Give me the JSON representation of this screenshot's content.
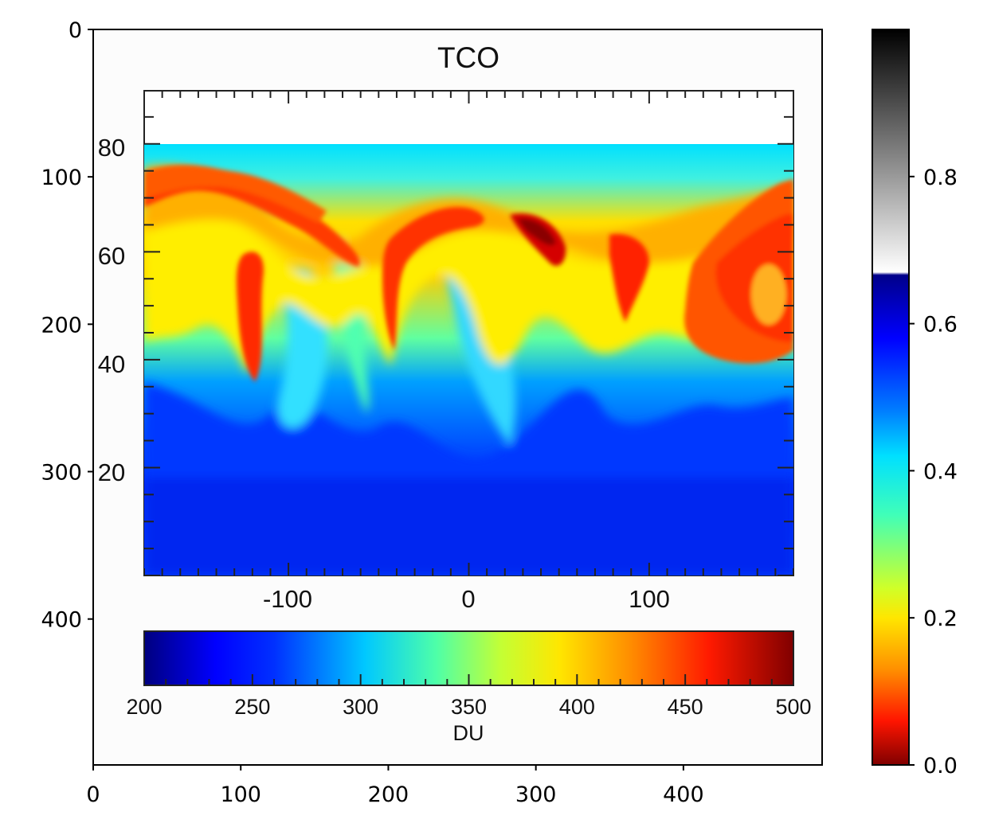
{
  "chart_data": {
    "type": "heatmap",
    "description_note": "",
    "image_axes": {
      "x_ticks": [
        "0",
        "100",
        "200",
        "300",
        "400"
      ],
      "y_ticks": [
        "0",
        "100",
        "200",
        "300",
        "400"
      ],
      "xlim": [
        0,
        494
      ],
      "ylim": [
        499,
        0
      ]
    },
    "outer_colorbar": {
      "colormap": "jet_r with greyscale top",
      "ticks": [
        "0.0",
        "0.2",
        "0.4",
        "0.6",
        "0.8"
      ],
      "range": [
        0,
        1
      ]
    },
    "inner_panel": {
      "title": "TCO",
      "x_ticks": [
        "-100",
        "0",
        "100"
      ],
      "y_ticks": [
        "80",
        "60",
        "40",
        "20"
      ],
      "x_range": [
        -180,
        180
      ],
      "y_range": [
        0,
        90
      ]
    },
    "inner_colorbar": {
      "label": "DU",
      "ticks": [
        "200",
        "250",
        "300",
        "350",
        "400",
        "450",
        "500"
      ],
      "range": [
        200,
        500
      ]
    }
  }
}
